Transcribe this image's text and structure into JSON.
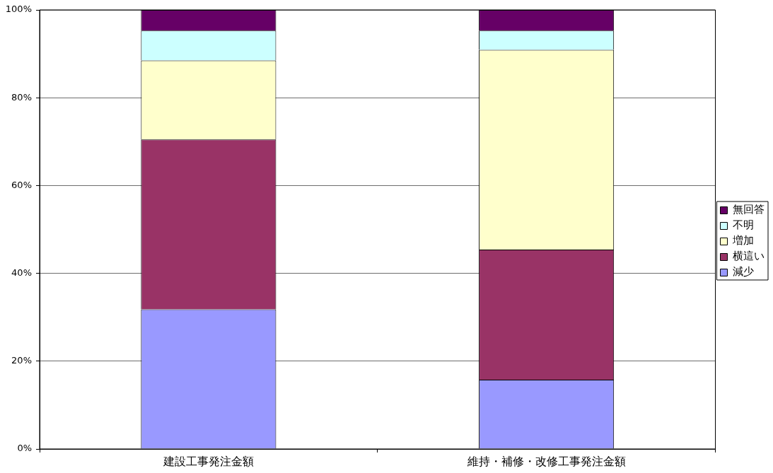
{
  "chart_data": {
    "type": "bar",
    "categories": [
      "建設工事発注金額",
      "維持・補修・改修工事発注金額"
    ],
    "series": [
      {
        "name": "減少",
        "color": "#9999ff",
        "values": [
          31.8,
          15.8
        ]
      },
      {
        "name": "横這い",
        "color": "#993366",
        "values": [
          38.7,
          29.6
        ]
      },
      {
        "name": "増加",
        "color": "#ffffcc",
        "values": [
          18.0,
          45.5
        ]
      },
      {
        "name": "不明",
        "color": "#ccffff",
        "values": [
          6.8,
          4.4
        ]
      },
      {
        "name": "無回答",
        "color": "#660066",
        "values": [
          4.7,
          4.7
        ]
      }
    ],
    "stacked": true,
    "ylim": [
      0,
      100
    ],
    "yticks": [
      {
        "value": 0,
        "label": "0%"
      },
      {
        "value": 20,
        "label": "20%"
      },
      {
        "value": 40,
        "label": "40%"
      },
      {
        "value": 60,
        "label": "60%"
      },
      {
        "value": 80,
        "label": "80%"
      },
      {
        "value": 100,
        "label": "100%"
      }
    ],
    "grid": "y",
    "legend": "right"
  }
}
